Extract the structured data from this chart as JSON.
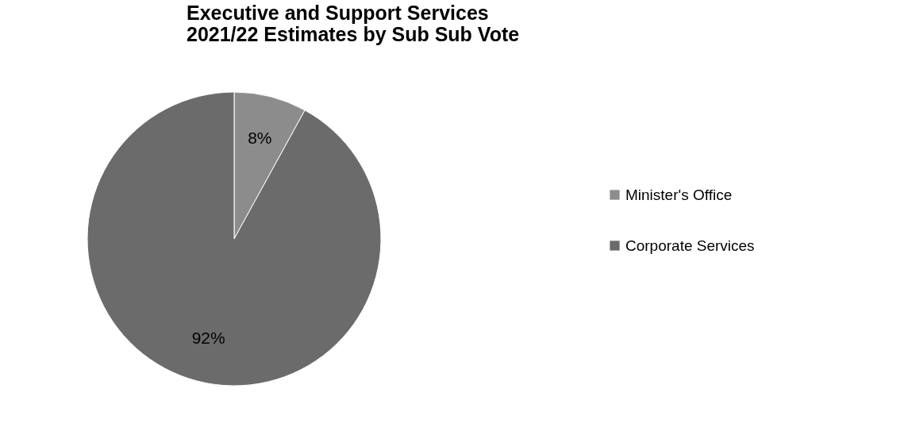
{
  "chart_data": {
    "type": "pie",
    "title": [
      "Executive and Support Services",
      "2021/22 Estimates by Sub Sub Vote"
    ],
    "categories": [
      "Minister's Office",
      "Corporate Services"
    ],
    "values": [
      8,
      92
    ],
    "colors": [
      "#8c8c8c",
      "#6b6b6b"
    ],
    "value_labels": [
      "8%",
      "92%"
    ],
    "legend": "right"
  }
}
